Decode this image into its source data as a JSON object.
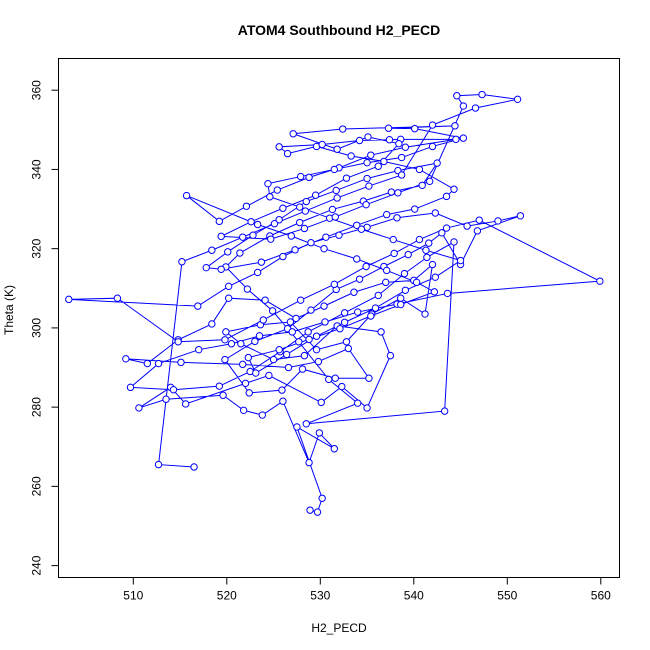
{
  "chart_data": {
    "type": "scatter",
    "connected": true,
    "title": "ATOM4 Southbound H2_PECD",
    "xlabel": "H2_PECD",
    "ylabel": "Theta (K)",
    "xlim": [
      502,
      562
    ],
    "ylim": [
      237,
      368
    ],
    "xticks": [
      510,
      520,
      530,
      540,
      550,
      560
    ],
    "yticks": [
      240,
      260,
      280,
      300,
      320,
      340,
      360
    ],
    "grid": false,
    "legend": "none",
    "series_color": "#0000ff",
    "series": [
      {
        "values": [
          [
            528.9,
            254.0
          ],
          [
            529.7,
            253.5
          ],
          [
            530.2,
            257.0
          ],
          [
            527.5,
            275.0
          ],
          [
            531.5,
            269.5
          ],
          [
            529.9,
            273.5
          ],
          [
            528.8,
            266.0
          ],
          [
            526.0,
            281.5
          ],
          [
            523.8,
            278.0
          ],
          [
            521.8,
            279.2
          ],
          [
            519.6,
            283.0
          ],
          [
            513.5,
            282.0
          ],
          [
            510.6,
            279.8
          ],
          [
            514.0,
            285.0
          ],
          [
            515.6,
            280.8
          ],
          [
            522.0,
            286.0
          ],
          [
            524.5,
            288.0
          ],
          [
            530.1,
            281.2
          ],
          [
            532.3,
            285.2
          ],
          [
            535.0,
            279.8
          ],
          [
            537.5,
            293.0
          ],
          [
            536.5,
            299.0
          ],
          [
            531.8,
            300.5
          ],
          [
            528.3,
            293.0
          ],
          [
            525.0,
            292.0
          ],
          [
            521.5,
            296.0
          ],
          [
            519.9,
            299.0
          ],
          [
            523.6,
            300.8
          ],
          [
            526.8,
            301.5
          ],
          [
            529.6,
            294.5
          ],
          [
            532.8,
            296.5
          ],
          [
            535.5,
            303.5
          ],
          [
            538.6,
            307.5
          ],
          [
            541.2,
            303.5
          ],
          [
            542.0,
            316.0
          ],
          [
            540.0,
            312.0
          ],
          [
            537.0,
            311.5
          ],
          [
            533.6,
            309.0
          ],
          [
            530.4,
            305.5
          ],
          [
            527.4,
            302.4
          ],
          [
            524.1,
            307.0
          ],
          [
            520.2,
            307.5
          ],
          [
            518.4,
            301.0
          ],
          [
            514.8,
            297.0
          ],
          [
            511.5,
            291.0
          ],
          [
            509.2,
            292.2
          ],
          [
            515.1,
            291.3
          ],
          [
            521.7,
            290.8
          ],
          [
            526.6,
            290.0
          ],
          [
            529.8,
            291.5
          ],
          [
            533.0,
            294.8
          ],
          [
            535.2,
            287.3
          ],
          [
            531.6,
            287.3
          ],
          [
            528.1,
            289.6
          ],
          [
            525.9,
            284.3
          ],
          [
            522.4,
            283.6
          ],
          [
            519.8,
            292.0
          ],
          [
            523.0,
            296.6
          ],
          [
            526.5,
            299.8
          ],
          [
            529.0,
            304.5
          ],
          [
            531.7,
            309.7
          ],
          [
            534.2,
            312.3
          ],
          [
            536.8,
            315.5
          ],
          [
            539.4,
            318.5
          ],
          [
            541.6,
            321.4
          ],
          [
            543.0,
            324.0
          ],
          [
            545.0,
            316.0
          ],
          [
            546.8,
            324.5
          ],
          [
            551.4,
            328.3
          ],
          [
            549.0,
            327.0
          ],
          [
            545.7,
            325.7
          ],
          [
            542.3,
            329.0
          ],
          [
            538.2,
            327.8
          ],
          [
            535.0,
            325.4
          ],
          [
            532.0,
            323.4
          ],
          [
            529.0,
            321.5
          ],
          [
            526.0,
            318.0
          ],
          [
            523.3,
            314.0
          ],
          [
            520.2,
            310.5
          ],
          [
            516.9,
            305.5
          ],
          [
            503.1,
            307.2
          ],
          [
            508.3,
            307.5
          ],
          [
            514.8,
            296.5
          ],
          [
            519.8,
            297.0
          ],
          [
            523.9,
            302.0
          ],
          [
            527.9,
            307.0
          ],
          [
            531.5,
            311.0
          ],
          [
            534.9,
            315.5
          ],
          [
            537.9,
            318.8
          ],
          [
            540.6,
            322.3
          ],
          [
            543.5,
            325.2
          ],
          [
            547.0,
            327.2
          ],
          [
            559.9,
            311.8
          ],
          [
            543.6,
            308.7
          ],
          [
            538.2,
            306.0
          ],
          [
            534.0,
            304.0
          ],
          [
            530.5,
            301.5
          ],
          [
            527.0,
            299.0
          ],
          [
            523.5,
            298.0
          ],
          [
            520.5,
            296.0
          ],
          [
            517.0,
            294.5
          ],
          [
            512.7,
            291.0
          ],
          [
            509.7,
            285.0
          ],
          [
            514.3,
            284.4
          ],
          [
            519.2,
            285.3
          ],
          [
            522.5,
            289.0
          ],
          [
            525.7,
            294.0
          ],
          [
            528.7,
            299.0
          ],
          [
            532.6,
            303.8
          ],
          [
            536.2,
            308.2
          ],
          [
            539.0,
            313.7
          ],
          [
            541.4,
            317.8
          ],
          [
            544.3,
            321.7
          ],
          [
            543.3,
            279.0
          ],
          [
            528.5,
            275.8
          ],
          [
            534.0,
            281.0
          ],
          [
            530.9,
            287.0
          ],
          [
            527.7,
            296.5
          ],
          [
            524.9,
            304.3
          ],
          [
            522.2,
            309.8
          ],
          [
            519.9,
            315.4
          ],
          [
            521.4,
            318.9
          ],
          [
            524.6,
            323.2
          ],
          [
            527.8,
            326.6
          ],
          [
            531.3,
            329.9
          ],
          [
            534.6,
            332.0
          ],
          [
            537.6,
            334.3
          ],
          [
            540.9,
            336.0
          ],
          [
            542.5,
            341.6
          ],
          [
            538.3,
            339.7
          ],
          [
            535.0,
            337.7
          ],
          [
            531.7,
            334.7
          ],
          [
            528.5,
            331.9
          ],
          [
            525.6,
            327.3
          ],
          [
            522.8,
            323.4
          ],
          [
            520.1,
            319.2
          ],
          [
            517.8,
            315.2
          ],
          [
            519.4,
            314.8
          ],
          [
            523.7,
            316.6
          ],
          [
            527.3,
            319.7
          ],
          [
            530.6,
            322.9
          ],
          [
            533.9,
            325.9
          ],
          [
            537.1,
            328.6
          ],
          [
            540.1,
            330.0
          ],
          [
            543.5,
            333.2
          ],
          [
            544.3,
            335.0
          ],
          [
            540.6,
            340.0
          ],
          [
            536.8,
            342.0
          ],
          [
            533.3,
            343.4
          ],
          [
            529.6,
            345.8
          ],
          [
            526.5,
            344.0
          ],
          [
            525.6,
            345.7
          ],
          [
            530.2,
            346.3
          ],
          [
            534.2,
            347.3
          ],
          [
            537.4,
            347.5
          ],
          [
            538.6,
            347.6
          ],
          [
            544.5,
            347.6
          ],
          [
            539.1,
            345.6
          ],
          [
            535.4,
            343.6
          ],
          [
            532.0,
            340.4
          ],
          [
            528.8,
            338.0
          ],
          [
            525.4,
            334.8
          ],
          [
            522.1,
            330.7
          ],
          [
            519.2,
            326.9
          ],
          [
            515.7,
            333.4
          ],
          [
            523.3,
            326.1
          ],
          [
            526.9,
            323.2
          ],
          [
            530.4,
            320.0
          ],
          [
            533.9,
            317.4
          ],
          [
            537.1,
            314.5
          ],
          [
            540.3,
            311.5
          ],
          [
            542.2,
            309.1
          ],
          [
            538.6,
            305.9
          ],
          [
            535.4,
            303.0
          ],
          [
            532.1,
            299.8
          ],
          [
            528.8,
            297.1
          ],
          [
            525.6,
            294.5
          ],
          [
            522.3,
            292.5
          ],
          [
            523.1,
            288.6
          ],
          [
            526.4,
            293.3
          ],
          [
            529.6,
            297.9
          ],
          [
            532.6,
            301.4
          ],
          [
            535.9,
            305.0
          ],
          [
            539.1,
            309.5
          ],
          [
            542.3,
            312.8
          ],
          [
            545.0,
            317.0
          ],
          [
            541.3,
            319.6
          ],
          [
            537.8,
            322.3
          ],
          [
            534.4,
            324.9
          ],
          [
            531.0,
            327.7
          ],
          [
            527.8,
            330.5
          ],
          [
            524.6,
            333.1
          ],
          [
            524.4,
            336.4
          ],
          [
            527.9,
            338.2
          ],
          [
            531.5,
            340.0
          ],
          [
            535.0,
            341.7
          ],
          [
            538.7,
            343.0
          ],
          [
            542.0,
            345.8
          ],
          [
            545.3,
            347.9
          ],
          [
            540.1,
            350.3
          ],
          [
            537.3,
            350.4
          ],
          [
            544.4,
            351.0
          ],
          [
            532.4,
            350.2
          ],
          [
            527.1,
            349.0
          ],
          [
            531.8,
            345.1
          ],
          [
            535.1,
            348.2
          ],
          [
            538.4,
            346.5
          ],
          [
            536.2,
            340.8
          ],
          [
            532.8,
            337.8
          ],
          [
            529.5,
            333.5
          ],
          [
            526.0,
            330.2
          ],
          [
            522.6,
            326.8
          ],
          [
            519.4,
            323.1
          ],
          [
            524.7,
            322.4
          ],
          [
            528.3,
            325.1
          ],
          [
            531.6,
            328.0
          ],
          [
            534.9,
            331.1
          ],
          [
            538.3,
            334.1
          ],
          [
            541.7,
            337.0
          ],
          [
            545.3,
            356.0
          ],
          [
            544.6,
            358.6
          ],
          [
            547.3,
            358.9
          ],
          [
            551.1,
            357.7
          ],
          [
            546.6,
            355.5
          ],
          [
            542.0,
            351.2
          ],
          [
            538.7,
            338.6
          ],
          [
            535.2,
            335.8
          ],
          [
            531.8,
            332.8
          ],
          [
            528.4,
            329.5
          ],
          [
            525.1,
            326.3
          ],
          [
            521.7,
            322.9
          ],
          [
            518.4,
            319.6
          ],
          [
            515.2,
            316.7
          ],
          [
            512.7,
            265.5
          ],
          [
            516.5,
            264.9
          ]
        ]
      }
    ]
  }
}
